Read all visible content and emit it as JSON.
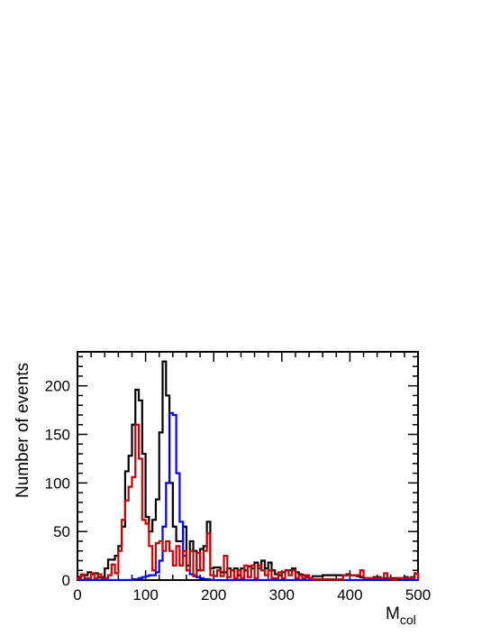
{
  "chart_data": {
    "type": "histogram",
    "xlabel_main": "M",
    "xlabel_sub": "col",
    "ylabel": "Number of events",
    "xlim": [
      0,
      500
    ],
    "ylim": [
      0,
      235
    ],
    "bin_width": 5,
    "x_ticks": [
      0,
      100,
      200,
      300,
      400,
      500
    ],
    "y_ticks": [
      0,
      50,
      100,
      150,
      200
    ],
    "grid": false,
    "legend": "none",
    "series": [
      {
        "color": "#000000",
        "values": [
          3,
          5,
          5,
          8,
          6,
          7,
          3,
          3,
          12,
          21,
          21,
          25,
          35,
          55,
          112,
          128,
          160,
          196,
          185,
          130,
          65,
          50,
          62,
          83,
          152,
          225,
          190,
          100,
          55,
          40,
          40,
          55,
          15,
          40,
          30,
          10,
          32,
          35,
          60,
          12,
          13,
          13,
          8,
          8,
          12,
          10,
          12,
          5,
          12,
          10,
          14,
          12,
          18,
          12,
          20,
          12,
          18,
          10,
          6,
          5,
          8,
          10,
          10,
          12,
          8,
          6,
          5,
          3,
          2,
          4,
          4,
          4,
          5,
          5,
          5,
          5,
          5,
          5,
          5,
          6,
          5,
          5,
          4,
          3,
          2,
          2,
          2,
          3,
          3,
          2,
          2,
          2,
          2,
          2,
          2,
          2,
          3,
          2,
          3,
          7
        ]
      },
      {
        "color": "#0000ff",
        "values": [
          0,
          0,
          0,
          0,
          0,
          0,
          0,
          0,
          0,
          0,
          0,
          0,
          0,
          0,
          0,
          0,
          1,
          1,
          2,
          3,
          4,
          5,
          5,
          8,
          20,
          55,
          100,
          172,
          170,
          110,
          60,
          25,
          10,
          6,
          4,
          3,
          2,
          1,
          1,
          0,
          0,
          0,
          0,
          0,
          0,
          0,
          0,
          0,
          0,
          0,
          0,
          0,
          0,
          0,
          0,
          0,
          0,
          0,
          0,
          0,
          0,
          0,
          0,
          0,
          0,
          0,
          0,
          0,
          0,
          0,
          0,
          0,
          0,
          0,
          0,
          0,
          0,
          0,
          0,
          0,
          0,
          0,
          0,
          0,
          0,
          0,
          0,
          0,
          0,
          0,
          0,
          0,
          0,
          0,
          0,
          0,
          0,
          0,
          0,
          0
        ]
      },
      {
        "color": "#cc0000",
        "values": [
          2,
          6,
          2,
          2,
          7,
          2,
          6,
          2,
          2,
          5,
          16,
          7,
          30,
          62,
          82,
          96,
          106,
          160,
          125,
          62,
          58,
          35,
          10,
          38,
          40,
          30,
          40,
          30,
          15,
          35,
          15,
          30,
          10,
          30,
          5,
          28,
          10,
          30,
          48,
          5,
          4,
          10,
          4,
          25,
          3,
          10,
          2,
          10,
          2,
          15,
          3,
          15,
          2,
          15,
          10,
          5,
          10,
          2,
          2,
          8,
          2,
          10,
          5,
          10,
          2,
          5,
          2,
          5,
          2,
          1,
          1,
          1,
          1,
          1,
          1,
          1,
          1,
          1,
          5,
          5,
          5,
          5,
          5,
          10,
          2,
          2,
          2,
          2,
          2,
          2,
          7,
          2,
          1,
          1,
          2,
          2,
          2,
          2,
          2,
          7
        ]
      }
    ]
  }
}
